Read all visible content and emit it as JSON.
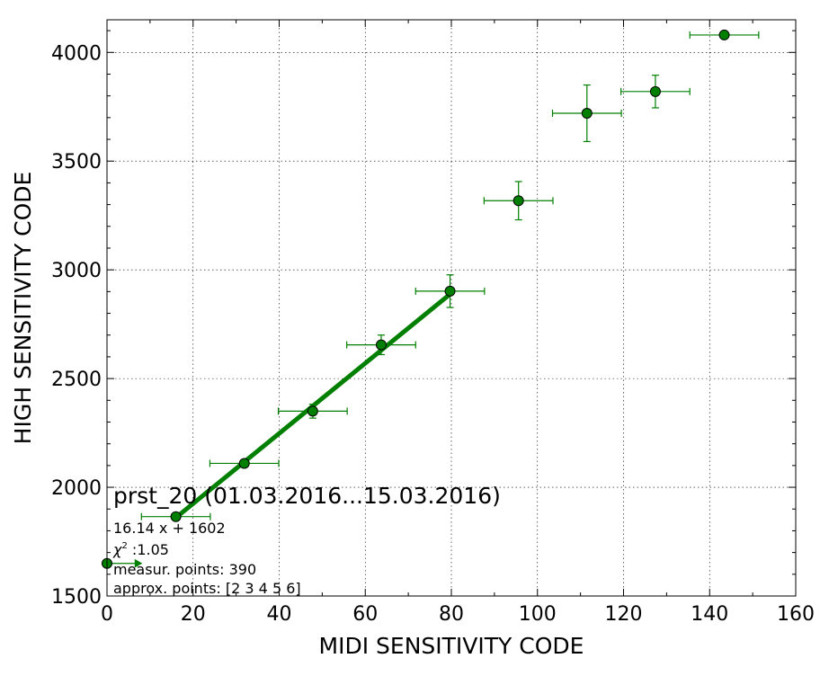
{
  "chart_data": {
    "type": "scatter",
    "title": "",
    "xlabel": "MIDI SENSITIVITY CODE",
    "ylabel": "HIGH SENSITIVITY CODE",
    "xlim": [
      0,
      160
    ],
    "ylim": [
      1500,
      4150
    ],
    "xticks": [
      0,
      20,
      40,
      60,
      80,
      100,
      120,
      140,
      160
    ],
    "yticks": [
      1500,
      2000,
      2500,
      3000,
      3500,
      4000
    ],
    "grid": true,
    "colors": {
      "marker": "#007f00",
      "marker_edge": "#000000",
      "errorbar": "#007f00",
      "fit_line": "#007f00"
    },
    "points": [
      {
        "x": 0,
        "y": 1650,
        "xerr_lo": 0,
        "xerr_hi": 8,
        "yerr": 0
      },
      {
        "x": 16,
        "y": 1865,
        "xerr": 8,
        "yerr": 0
      },
      {
        "x": 31.9,
        "y": 2110,
        "xerr": 8,
        "yerr": 12
      },
      {
        "x": 47.8,
        "y": 2350,
        "xerr": 8,
        "yerr": 32
      },
      {
        "x": 63.7,
        "y": 2655,
        "xerr": 8,
        "yerr": 45
      },
      {
        "x": 79.7,
        "y": 2902,
        "xerr": 8,
        "yerr": 75
      },
      {
        "x": 95.6,
        "y": 3318,
        "xerr": 8,
        "yerr": 88
      },
      {
        "x": 111.5,
        "y": 3720,
        "xerr": 8,
        "yerr": 130
      },
      {
        "x": 127.4,
        "y": 3820,
        "xerr": 8,
        "yerr": 75
      },
      {
        "x": 143.4,
        "y": 4080,
        "xerr": 8,
        "yerr": 0
      }
    ],
    "fit": {
      "slope": 16.14,
      "intercept": 1602,
      "x_range": [
        16,
        79.7
      ]
    },
    "annotations": {
      "name": "prst_20 (01.03.2016...15.03.2016)",
      "equation": "16.14 x + 1602",
      "chi_label": "χ",
      "chi_sup": "2",
      "chi_value": " :1.05",
      "measur": "measur. points: 390",
      "approx": "approx. points: [2 3 4 5 6]"
    }
  }
}
